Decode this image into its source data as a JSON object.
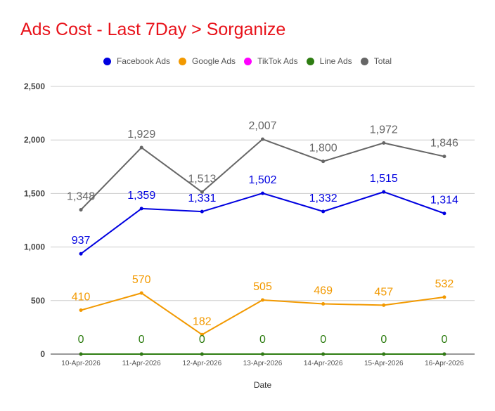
{
  "chart_data": {
    "type": "line",
    "title": "Ads Cost - Last 7Day > Sorganize",
    "xlabel": "Date",
    "ylabel": "",
    "ylim": [
      0,
      2500
    ],
    "yticks": [
      0,
      500,
      1000,
      1500,
      2000,
      2500
    ],
    "ytick_labels": [
      "0",
      "500",
      "1,000",
      "1,500",
      "2,000",
      "2,500"
    ],
    "grid": true,
    "legend_position": "top-center",
    "categories": [
      "10-Apr-2026",
      "11-Apr-2026",
      "12-Apr-2026",
      "13-Apr-2026",
      "14-Apr-2026",
      "15-Apr-2026",
      "16-Apr-2026"
    ],
    "series": [
      {
        "name": "Facebook Ads",
        "color": "#0000e0",
        "values": [
          937,
          1359,
          1331,
          1502,
          1332,
          1515,
          1314
        ],
        "labels": [
          "937",
          "1,359",
          "1,331",
          "1,502",
          "1,332",
          "1,515",
          "1,314"
        ]
      },
      {
        "name": "Google Ads",
        "color": "#f29900",
        "values": [
          410,
          570,
          182,
          505,
          469,
          457,
          532
        ],
        "labels": [
          "410",
          "570",
          "182",
          "505",
          "469",
          "457",
          "532"
        ]
      },
      {
        "name": "TikTok Ads",
        "color": "#ff00ff",
        "values": [
          0,
          0,
          0,
          0,
          0,
          0,
          0
        ],
        "labels": []
      },
      {
        "name": "Line Ads",
        "color": "#2e7d12",
        "values": [
          0,
          0,
          0,
          0,
          0,
          0,
          0
        ],
        "labels": [
          "0",
          "0",
          "0",
          "0",
          "0",
          "0",
          "0"
        ]
      },
      {
        "name": "Total",
        "color": "#666666",
        "values": [
          1348,
          1929,
          1513,
          2007,
          1800,
          1972,
          1846
        ],
        "labels": [
          "1,348",
          "1,929",
          "1,513",
          "2,007",
          "1,800",
          "1,972",
          "1,846"
        ]
      }
    ]
  }
}
